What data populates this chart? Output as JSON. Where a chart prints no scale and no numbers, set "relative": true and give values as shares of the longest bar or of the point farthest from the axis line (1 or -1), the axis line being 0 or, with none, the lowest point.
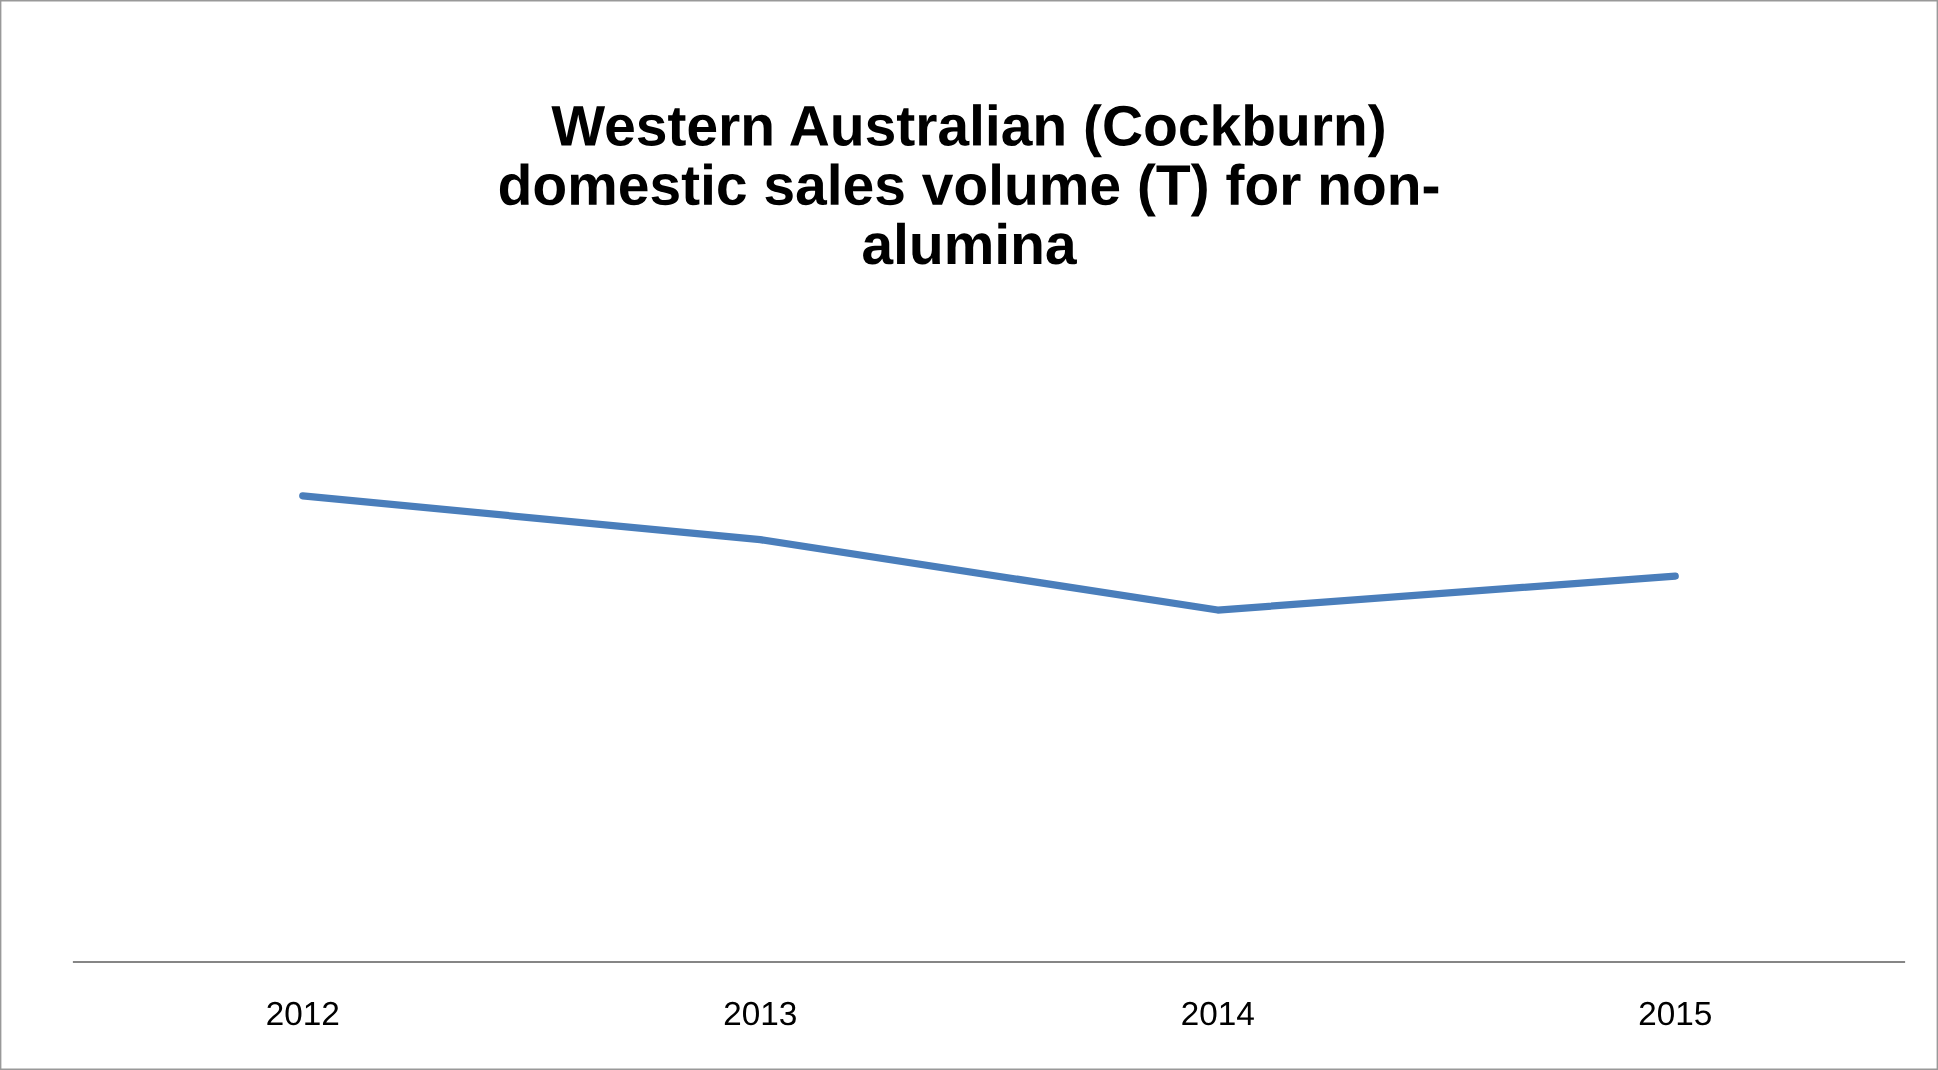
{
  "chart_data": {
    "type": "line",
    "title": "Western Australian (Cockburn)\ndomestic sales volume (T) for non-\nalumina",
    "categories": [
      "2012",
      "2013",
      "2014",
      "2015"
    ],
    "relative": true,
    "series": [
      {
        "color": "#4a7ebb",
        "values": [
          1,
          0.906,
          0.755,
          0.828
        ]
      }
    ],
    "marker": "none",
    "line_style": "solid"
  }
}
